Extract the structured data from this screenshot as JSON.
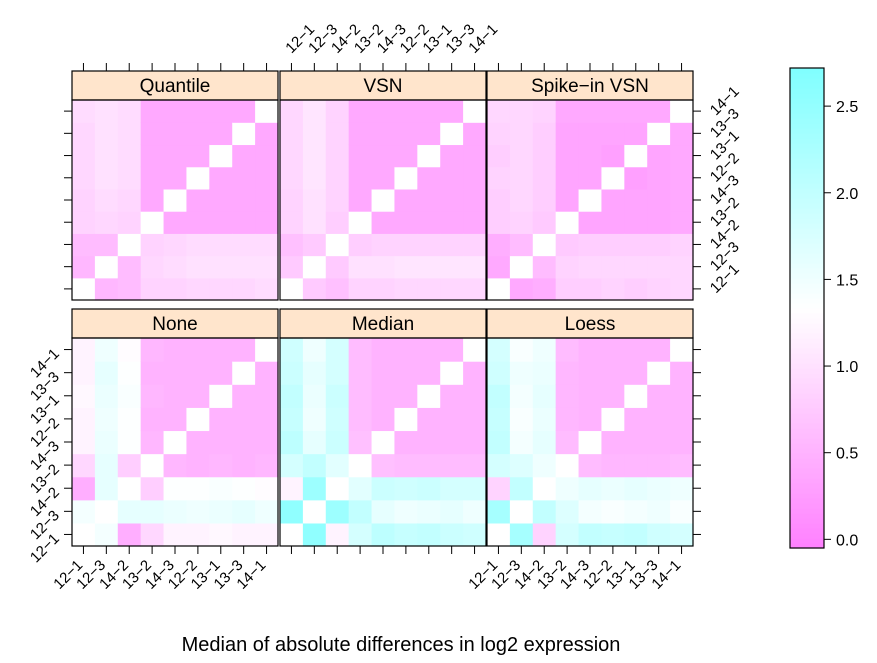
{
  "chart_data": {
    "type": "heatmap",
    "xlabel": "Median of absolute differences in log2 expression",
    "samples": [
      "12-1",
      "12-3",
      "14-2",
      "13-2",
      "14-3",
      "12-2",
      "13-1",
      "13-3",
      "14-1"
    ],
    "tick_labels": [
      "12−1",
      "12−3",
      "14−2",
      "13−2",
      "14−3",
      "12−2",
      "13−1",
      "13−3",
      "14−1"
    ],
    "colorbar": {
      "ticks": [
        0.0,
        0.5,
        1.0,
        1.5,
        2.0,
        2.5
      ],
      "tick_labels": [
        "0.0",
        "0.5",
        "1.0",
        "1.5",
        "2.0",
        "2.5"
      ],
      "range": [
        -0.05,
        2.72
      ],
      "low_color": "#ff80ff",
      "mid_color": "#ffffff",
      "high_color": "#80ffff",
      "mid_value": 1.33
    },
    "strip_color": "#ffe5cc",
    "panels": [
      {
        "name": "Quantile",
        "matrix": [
          [
            0,
            0.55,
            0.6,
            0.85,
            0.85,
            0.9,
            0.9,
            0.9,
            0.95
          ],
          [
            0.55,
            0,
            0.6,
            0.9,
            0.95,
            1.0,
            1.0,
            1.0,
            1.0
          ],
          [
            0.6,
            0.6,
            0,
            0.85,
            0.9,
            0.95,
            0.95,
            0.95,
            0.95
          ],
          [
            0.85,
            0.9,
            0.85,
            0,
            0.4,
            0.4,
            0.4,
            0.4,
            0.4
          ],
          [
            0.85,
            0.95,
            0.9,
            0.4,
            0,
            0.4,
            0.4,
            0.4,
            0.4
          ],
          [
            0.9,
            1.0,
            0.95,
            0.4,
            0.4,
            0,
            0.4,
            0.4,
            0.4
          ],
          [
            0.9,
            1.0,
            0.95,
            0.4,
            0.4,
            0.4,
            0,
            0.4,
            0.4
          ],
          [
            0.9,
            1.0,
            0.95,
            0.4,
            0.4,
            0.4,
            0.4,
            0,
            0.4
          ],
          [
            0.95,
            1.0,
            0.95,
            0.4,
            0.4,
            0.4,
            0.4,
            0.4,
            0
          ]
        ]
      },
      {
        "name": "VSN",
        "matrix": [
          [
            0,
            0.75,
            0.65,
            0.85,
            0.85,
            0.9,
            0.9,
            0.9,
            0.9
          ],
          [
            0.75,
            0,
            0.75,
            1.0,
            1.0,
            1.05,
            1.05,
            1.05,
            1.05
          ],
          [
            0.65,
            0.75,
            0,
            0.8,
            0.85,
            0.85,
            0.85,
            0.85,
            0.85
          ],
          [
            0.85,
            1.0,
            0.8,
            0,
            0.4,
            0.4,
            0.4,
            0.4,
            0.4
          ],
          [
            0.85,
            1.0,
            0.85,
            0.4,
            0,
            0.4,
            0.4,
            0.4,
            0.4
          ],
          [
            0.9,
            1.05,
            0.85,
            0.4,
            0.4,
            0,
            0.4,
            0.4,
            0.4
          ],
          [
            0.9,
            1.05,
            0.85,
            0.4,
            0.4,
            0.4,
            0,
            0.4,
            0.4
          ],
          [
            0.9,
            1.05,
            0.85,
            0.4,
            0.4,
            0.4,
            0.4,
            0,
            0.4
          ],
          [
            0.9,
            1.05,
            0.85,
            0.4,
            0.4,
            0.4,
            0.4,
            0.4,
            0
          ]
        ]
      },
      {
        "name": "Spike−in VSN",
        "matrix": [
          [
            0,
            0.4,
            0.45,
            0.8,
            0.8,
            0.85,
            0.8,
            0.85,
            0.9
          ],
          [
            0.4,
            0,
            0.6,
            0.85,
            0.9,
            0.9,
            0.9,
            0.9,
            0.9
          ],
          [
            0.45,
            0.6,
            0,
            0.75,
            0.8,
            0.8,
            0.8,
            0.8,
            0.85
          ],
          [
            0.8,
            0.85,
            0.75,
            0,
            0.35,
            0.35,
            0.35,
            0.35,
            0.4
          ],
          [
            0.8,
            0.9,
            0.8,
            0.35,
            0,
            0.35,
            0.35,
            0.35,
            0.4
          ],
          [
            0.85,
            0.9,
            0.8,
            0.35,
            0.35,
            0,
            0.3,
            0.35,
            0.4
          ],
          [
            0.8,
            0.9,
            0.8,
            0.35,
            0.35,
            0.3,
            0,
            0.35,
            0.4
          ],
          [
            0.85,
            0.9,
            0.8,
            0.35,
            0.35,
            0.35,
            0.35,
            0,
            0.4
          ],
          [
            0.9,
            0.9,
            0.85,
            0.4,
            0.4,
            0.4,
            0.4,
            0.4,
            0
          ]
        ]
      },
      {
        "name": "None",
        "matrix": [
          [
            0,
            1.45,
            0.45,
            0.9,
            1.2,
            1.2,
            1.25,
            1.2,
            1.2
          ],
          [
            1.45,
            0,
            1.6,
            1.6,
            1.55,
            1.5,
            1.55,
            1.6,
            1.5
          ],
          [
            0.45,
            1.6,
            0,
            0.8,
            1.35,
            1.35,
            1.4,
            1.35,
            1.3
          ],
          [
            0.9,
            1.6,
            0.8,
            0,
            0.55,
            0.5,
            0.55,
            0.5,
            0.55
          ],
          [
            1.2,
            1.55,
            1.35,
            0.55,
            0,
            0.5,
            0.5,
            0.5,
            0.5
          ],
          [
            1.2,
            1.5,
            1.35,
            0.5,
            0.5,
            0,
            0.5,
            0.5,
            0.5
          ],
          [
            1.25,
            1.55,
            1.4,
            0.55,
            0.5,
            0.5,
            0,
            0.5,
            0.5
          ],
          [
            1.2,
            1.6,
            1.35,
            0.5,
            0.5,
            0.5,
            0.5,
            0,
            0.5
          ],
          [
            1.2,
            1.5,
            1.3,
            0.55,
            0.5,
            0.5,
            0.5,
            0.5,
            0
          ]
        ]
      },
      {
        "name": "Median",
        "matrix": [
          [
            0,
            2.55,
            1.2,
            1.8,
            2.05,
            1.95,
            2.0,
            1.9,
            1.85
          ],
          [
            2.55,
            0,
            2.4,
            2.0,
            1.6,
            1.5,
            1.55,
            1.6,
            1.5
          ],
          [
            1.2,
            2.4,
            0,
            1.65,
            1.9,
            1.85,
            1.9,
            1.8,
            1.8
          ],
          [
            1.8,
            2.0,
            1.65,
            0,
            0.65,
            0.6,
            0.6,
            0.6,
            0.6
          ],
          [
            2.05,
            1.6,
            1.9,
            0.65,
            0,
            0.5,
            0.5,
            0.5,
            0.5
          ],
          [
            1.95,
            1.5,
            1.85,
            0.6,
            0.5,
            0,
            0.5,
            0.5,
            0.5
          ],
          [
            2.0,
            1.55,
            1.9,
            0.6,
            0.5,
            0.5,
            0,
            0.5,
            0.5
          ],
          [
            1.9,
            1.6,
            1.8,
            0.6,
            0.5,
            0.5,
            0.5,
            0,
            0.5
          ],
          [
            1.85,
            1.5,
            1.8,
            0.6,
            0.5,
            0.5,
            0.5,
            0.5,
            0
          ]
        ]
      },
      {
        "name": "Loess",
        "matrix": [
          [
            0,
            2.3,
            0.85,
            1.8,
            2.0,
            1.95,
            2.0,
            1.85,
            1.8
          ],
          [
            2.3,
            0,
            2.0,
            1.7,
            1.45,
            1.4,
            1.45,
            1.5,
            1.4
          ],
          [
            0.85,
            2.0,
            0,
            1.5,
            1.6,
            1.55,
            1.6,
            1.55,
            1.5
          ],
          [
            1.8,
            1.7,
            1.5,
            0,
            0.6,
            0.55,
            0.55,
            0.55,
            0.6
          ],
          [
            2.0,
            1.45,
            1.6,
            0.6,
            0,
            0.5,
            0.5,
            0.5,
            0.5
          ],
          [
            1.95,
            1.4,
            1.55,
            0.55,
            0.5,
            0,
            0.5,
            0.5,
            0.5
          ],
          [
            2.0,
            1.45,
            1.6,
            0.55,
            0.5,
            0.5,
            0,
            0.5,
            0.5
          ],
          [
            1.85,
            1.5,
            1.55,
            0.55,
            0.5,
            0.5,
            0.5,
            0,
            0.5
          ],
          [
            1.8,
            1.4,
            1.5,
            0.6,
            0.5,
            0.5,
            0.5,
            0.5,
            0
          ]
        ]
      }
    ]
  }
}
